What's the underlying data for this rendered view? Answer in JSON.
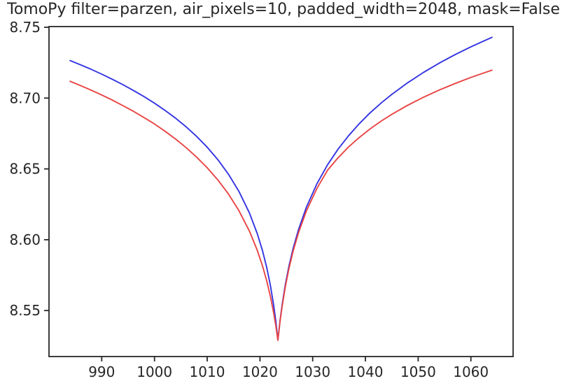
{
  "title": "TomoPy filter=parzen, air_pixels=10, padded_width=2048, mask=False",
  "colors": {
    "background": "#ffffff",
    "axis": "#262626",
    "text": "#262626",
    "blue_line": "#3434e2",
    "red_line": "#e94444"
  },
  "chart_data": {
    "type": "line",
    "title": "TomoPy filter=parzen, air_pixels=10, padded_width=2048, mask=False",
    "xlabel": "",
    "ylabel": "",
    "grid": false,
    "legend": "none",
    "xlim": [
      980,
      1068
    ],
    "ylim": [
      8.5175,
      8.7505
    ],
    "xticks": [
      990,
      1000,
      1010,
      1020,
      1030,
      1040,
      1050,
      1060
    ],
    "xtick_labels": [
      "990",
      "1000",
      "1010",
      "1020",
      "1030",
      "1040",
      "1050",
      "1060"
    ],
    "yticks": [
      8.55,
      8.6,
      8.65,
      8.7,
      8.75
    ],
    "ytick_labels": [
      "8.55",
      "8.60",
      "8.65",
      "8.70",
      "8.75"
    ],
    "x": [
      984,
      986,
      988,
      990,
      992,
      994,
      996,
      998,
      1000,
      1002,
      1004,
      1006,
      1008,
      1010,
      1012,
      1014,
      1016,
      1018,
      1019.5,
      1020.5,
      1021.3,
      1022,
      1022.6,
      1023,
      1023.4,
      1023.8,
      1024.2,
      1024.8,
      1025.5,
      1026.3,
      1027.3,
      1028.8,
      1030.8,
      1032.8,
      1034.8,
      1036.8,
      1038.8,
      1040.8,
      1043,
      1045,
      1048,
      1051,
      1054,
      1057,
      1060,
      1062,
      1064
    ],
    "series": [
      {
        "name": "blue",
        "color": "#3434e2",
        "y": [
          8.7265,
          8.7235,
          8.7203,
          8.7169,
          8.7133,
          8.7095,
          8.7054,
          8.7011,
          8.6964,
          8.6913,
          8.6858,
          8.6797,
          8.6729,
          8.6653,
          8.6566,
          8.6464,
          8.6342,
          8.6189,
          8.6042,
          8.592,
          8.5801,
          8.5673,
          8.5537,
          8.5426,
          8.529,
          8.5426,
          8.5539,
          8.568,
          8.5814,
          8.594,
          8.607,
          8.6229,
          8.6395,
          8.6528,
          8.6639,
          8.6734,
          8.6818,
          8.6893,
          8.6966,
          8.7026,
          8.7108,
          8.7181,
          8.7247,
          8.7307,
          8.7362,
          8.7396,
          8.7429
        ]
      },
      {
        "name": "red",
        "color": "#e94444",
        "y": [
          8.7119,
          8.7088,
          8.7056,
          8.7022,
          8.6986,
          8.6947,
          8.6907,
          8.6863,
          8.6817,
          8.6766,
          8.6711,
          8.665,
          8.6583,
          8.6508,
          8.6423,
          8.6324,
          8.6206,
          8.6061,
          8.5924,
          8.5813,
          8.5707,
          8.5596,
          8.5483,
          8.5394,
          8.529,
          8.542,
          8.5528,
          8.5666,
          8.5797,
          8.5921,
          8.6048,
          8.6203,
          8.6362,
          8.649,
          8.6578,
          8.6655,
          8.6721,
          8.678,
          8.6838,
          8.6885,
          8.6949,
          8.7006,
          8.7057,
          8.7103,
          8.7146,
          8.7172,
          8.7197
        ]
      }
    ]
  }
}
